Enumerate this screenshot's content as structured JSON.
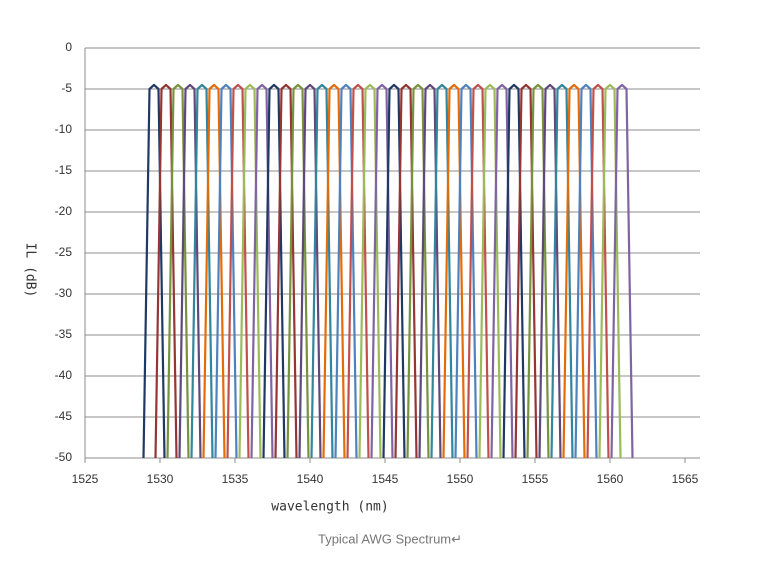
{
  "chart_data": {
    "type": "line",
    "title": "Typical AWG Spectrum↵",
    "xlabel": "wavelength (nm)",
    "ylabel": "IL (dB)",
    "xlim": [
      1525,
      1566
    ],
    "xticks": [
      1525,
      1530,
      1535,
      1540,
      1545,
      1550,
      1555,
      1560,
      1565
    ],
    "ylim": [
      -50,
      0
    ],
    "yticks": [
      0,
      -5,
      -10,
      -15,
      -20,
      -25,
      -30,
      -35,
      -40,
      -45,
      -50
    ],
    "grid": true,
    "series": [
      {
        "color": "#1f3864",
        "x": [
          1528.9,
          1529.3,
          1529.6,
          1529.9,
          1530.3
        ],
        "values": [
          -50,
          -5,
          -4.5,
          -5,
          -50
        ]
      },
      {
        "color": "#943634",
        "x": [
          1529.7,
          1530.1,
          1530.4,
          1530.7,
          1531.1
        ],
        "values": [
          -50,
          -5,
          -4.5,
          -5,
          -50
        ]
      },
      {
        "color": "#76923c",
        "x": [
          1530.5,
          1530.9,
          1531.2,
          1531.5,
          1531.9
        ],
        "values": [
          -50,
          -5,
          -4.5,
          -5,
          -50
        ]
      },
      {
        "color": "#5f497a",
        "x": [
          1531.3,
          1531.7,
          1532,
          1532.3,
          1532.7
        ],
        "values": [
          -50,
          -5,
          -4.5,
          -5,
          -50
        ]
      },
      {
        "color": "#31859c",
        "x": [
          1532.1,
          1532.5,
          1532.8,
          1533.1,
          1533.5
        ],
        "values": [
          -50,
          -5,
          -4.5,
          -5,
          -50
        ]
      },
      {
        "color": "#e36c09",
        "x": [
          1532.9,
          1533.3,
          1533.6,
          1533.9,
          1534.3
        ],
        "values": [
          -50,
          -5,
          -4.5,
          -5,
          -50
        ]
      },
      {
        "color": "#4f81bd",
        "x": [
          1533.7,
          1534.1,
          1534.4,
          1534.7,
          1535.1
        ],
        "values": [
          -50,
          -5,
          -4.5,
          -5,
          -50
        ]
      },
      {
        "color": "#c0504d",
        "x": [
          1534.5,
          1534.9,
          1535.2,
          1535.5,
          1535.9
        ],
        "values": [
          -50,
          -5,
          -4.5,
          -5,
          -50
        ]
      },
      {
        "color": "#9bbb59",
        "x": [
          1535.3,
          1535.7,
          1536,
          1536.3,
          1536.7
        ],
        "values": [
          -50,
          -5,
          -4.5,
          -5,
          -50
        ]
      },
      {
        "color": "#8064a2",
        "x": [
          1536.1,
          1536.5,
          1536.8,
          1537.1,
          1537.5
        ],
        "values": [
          -50,
          -5,
          -4.5,
          -5,
          -50
        ]
      },
      {
        "color": "#1f3864",
        "x": [
          1536.9,
          1537.3,
          1537.6,
          1537.9,
          1538.3
        ],
        "values": [
          -50,
          -5,
          -4.5,
          -5,
          -50
        ]
      },
      {
        "color": "#943634",
        "x": [
          1537.7,
          1538.1,
          1538.4,
          1538.7,
          1539.1
        ],
        "values": [
          -50,
          -5,
          -4.5,
          -5,
          -50
        ]
      },
      {
        "color": "#76923c",
        "x": [
          1538.5,
          1538.9,
          1539.2,
          1539.5,
          1539.9
        ],
        "values": [
          -50,
          -5,
          -4.5,
          -5,
          -50
        ]
      },
      {
        "color": "#5f497a",
        "x": [
          1539.3,
          1539.7,
          1540,
          1540.3,
          1540.7
        ],
        "values": [
          -50,
          -5,
          -4.5,
          -5,
          -50
        ]
      },
      {
        "color": "#31859c",
        "x": [
          1540.1,
          1540.5,
          1540.8,
          1541.1,
          1541.5
        ],
        "values": [
          -50,
          -5,
          -4.5,
          -5,
          -50
        ]
      },
      {
        "color": "#e36c09",
        "x": [
          1540.9,
          1541.3,
          1541.6,
          1541.9,
          1542.3
        ],
        "values": [
          -50,
          -5,
          -4.5,
          -5,
          -50
        ]
      },
      {
        "color": "#4f81bd",
        "x": [
          1541.7,
          1542.1,
          1542.4,
          1542.7,
          1543.1
        ],
        "values": [
          -50,
          -5,
          -4.5,
          -5,
          -50
        ]
      },
      {
        "color": "#c0504d",
        "x": [
          1542.5,
          1542.9,
          1543.2,
          1543.5,
          1543.9
        ],
        "values": [
          -50,
          -5,
          -4.5,
          -5,
          -50
        ]
      },
      {
        "color": "#9bbb59",
        "x": [
          1543.3,
          1543.7,
          1544,
          1544.3,
          1544.7
        ],
        "values": [
          -50,
          -5,
          -4.5,
          -5,
          -50
        ]
      },
      {
        "color": "#8064a2",
        "x": [
          1544.1,
          1544.5,
          1544.8,
          1545.1,
          1545.5
        ],
        "values": [
          -50,
          -5,
          -4.5,
          -5,
          -50
        ]
      },
      {
        "color": "#1f3864",
        "x": [
          1544.9,
          1545.3,
          1545.6,
          1545.9,
          1546.3
        ],
        "values": [
          -50,
          -5,
          -4.5,
          -5,
          -50
        ]
      },
      {
        "color": "#943634",
        "x": [
          1545.7,
          1546.1,
          1546.4,
          1546.7,
          1547.1
        ],
        "values": [
          -50,
          -5,
          -4.5,
          -5,
          -50
        ]
      },
      {
        "color": "#76923c",
        "x": [
          1546.5,
          1546.9,
          1547.2,
          1547.5,
          1547.9
        ],
        "values": [
          -50,
          -5,
          -4.5,
          -5,
          -50
        ]
      },
      {
        "color": "#5f497a",
        "x": [
          1547.3,
          1547.7,
          1548,
          1548.3,
          1548.7
        ],
        "values": [
          -50,
          -5,
          -4.5,
          -5,
          -50
        ]
      },
      {
        "color": "#31859c",
        "x": [
          1548.1,
          1548.5,
          1548.8,
          1549.1,
          1549.5
        ],
        "values": [
          -50,
          -5,
          -4.5,
          -5,
          -50
        ]
      },
      {
        "color": "#e36c09",
        "x": [
          1548.9,
          1549.3,
          1549.6,
          1549.9,
          1550.3
        ],
        "values": [
          -50,
          -5,
          -4.5,
          -5,
          -50
        ]
      },
      {
        "color": "#4f81bd",
        "x": [
          1549.7,
          1550.1,
          1550.4,
          1550.7,
          1551.1
        ],
        "values": [
          -50,
          -5,
          -4.5,
          -5,
          -50
        ]
      },
      {
        "color": "#c0504d",
        "x": [
          1550.5,
          1550.9,
          1551.2,
          1551.5,
          1551.9
        ],
        "values": [
          -50,
          -5,
          -4.5,
          -5,
          -50
        ]
      },
      {
        "color": "#9bbb59",
        "x": [
          1551.3,
          1551.7,
          1552,
          1552.3,
          1552.7
        ],
        "values": [
          -50,
          -5,
          -4.5,
          -5,
          -50
        ]
      },
      {
        "color": "#8064a2",
        "x": [
          1552.1,
          1552.5,
          1552.8,
          1553.1,
          1553.5
        ],
        "values": [
          -50,
          -5,
          -4.5,
          -5,
          -50
        ]
      },
      {
        "color": "#1f3864",
        "x": [
          1552.9,
          1553.3,
          1553.6,
          1553.9,
          1554.3
        ],
        "values": [
          -50,
          -5,
          -4.5,
          -5,
          -50
        ]
      },
      {
        "color": "#943634",
        "x": [
          1553.7,
          1554.1,
          1554.4,
          1554.7,
          1555.1
        ],
        "values": [
          -50,
          -5,
          -4.5,
          -5,
          -50
        ]
      },
      {
        "color": "#76923c",
        "x": [
          1554.5,
          1554.9,
          1555.2,
          1555.5,
          1555.9
        ],
        "values": [
          -50,
          -5,
          -4.5,
          -5,
          -50
        ]
      },
      {
        "color": "#5f497a",
        "x": [
          1555.3,
          1555.7,
          1556,
          1556.3,
          1556.7
        ],
        "values": [
          -50,
          -5,
          -4.5,
          -5,
          -50
        ]
      },
      {
        "color": "#31859c",
        "x": [
          1556.1,
          1556.5,
          1556.8,
          1557.1,
          1557.5
        ],
        "values": [
          -50,
          -5,
          -4.5,
          -5,
          -50
        ]
      },
      {
        "color": "#e36c09",
        "x": [
          1556.9,
          1557.3,
          1557.6,
          1557.9,
          1558.3
        ],
        "values": [
          -50,
          -5,
          -4.5,
          -5,
          -50
        ]
      },
      {
        "color": "#4f81bd",
        "x": [
          1557.7,
          1558.1,
          1558.4,
          1558.7,
          1559.1
        ],
        "values": [
          -50,
          -5,
          -4.5,
          -5,
          -50
        ]
      },
      {
        "color": "#c0504d",
        "x": [
          1558.5,
          1558.9,
          1559.2,
          1559.5,
          1559.9
        ],
        "values": [
          -50,
          -5,
          -4.5,
          -5,
          -50
        ]
      },
      {
        "color": "#9bbb59",
        "x": [
          1559.3,
          1559.7,
          1560,
          1560.3,
          1560.7
        ],
        "values": [
          -50,
          -5,
          -4.5,
          -5,
          -50
        ]
      },
      {
        "color": "#8064a2",
        "x": [
          1560.1,
          1560.5,
          1560.8,
          1561.1,
          1561.5
        ],
        "values": [
          -50,
          -5,
          -4.5,
          -5,
          -50
        ]
      }
    ]
  }
}
